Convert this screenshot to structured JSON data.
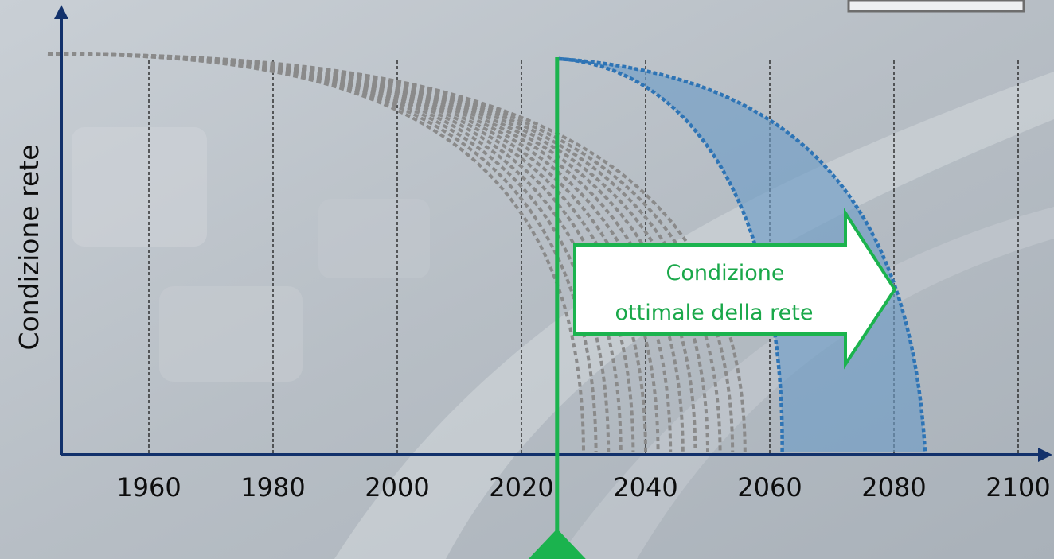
{
  "chart_data": {
    "type": "line",
    "title": "",
    "ylabel": "Condizione rete",
    "xlabel": "",
    "x_ticks": [
      1960,
      1980,
      2000,
      2020,
      2040,
      2060,
      2080,
      2100
    ],
    "xlim": [
      1947,
      2105
    ],
    "grid": "vertical dashed",
    "marker_year": 2026,
    "gray_curve_end_years": [
      2030,
      2032,
      2034,
      2036,
      2038,
      2040,
      2042,
      2044,
      2046,
      2048,
      2050,
      2052,
      2054,
      2056
    ],
    "blue_band": {
      "start_year": 2026,
      "lower_end_year": 2062,
      "upper_end_year": 2085
    },
    "callout": {
      "line1": "Condizione",
      "line2": "ottimale della rete"
    },
    "colors": {
      "axis": "#12316b",
      "gray": "#8a8a8a",
      "blue": "#2e74b5",
      "band_fill": "#6f9cc6",
      "green": "#1bb34e"
    }
  }
}
